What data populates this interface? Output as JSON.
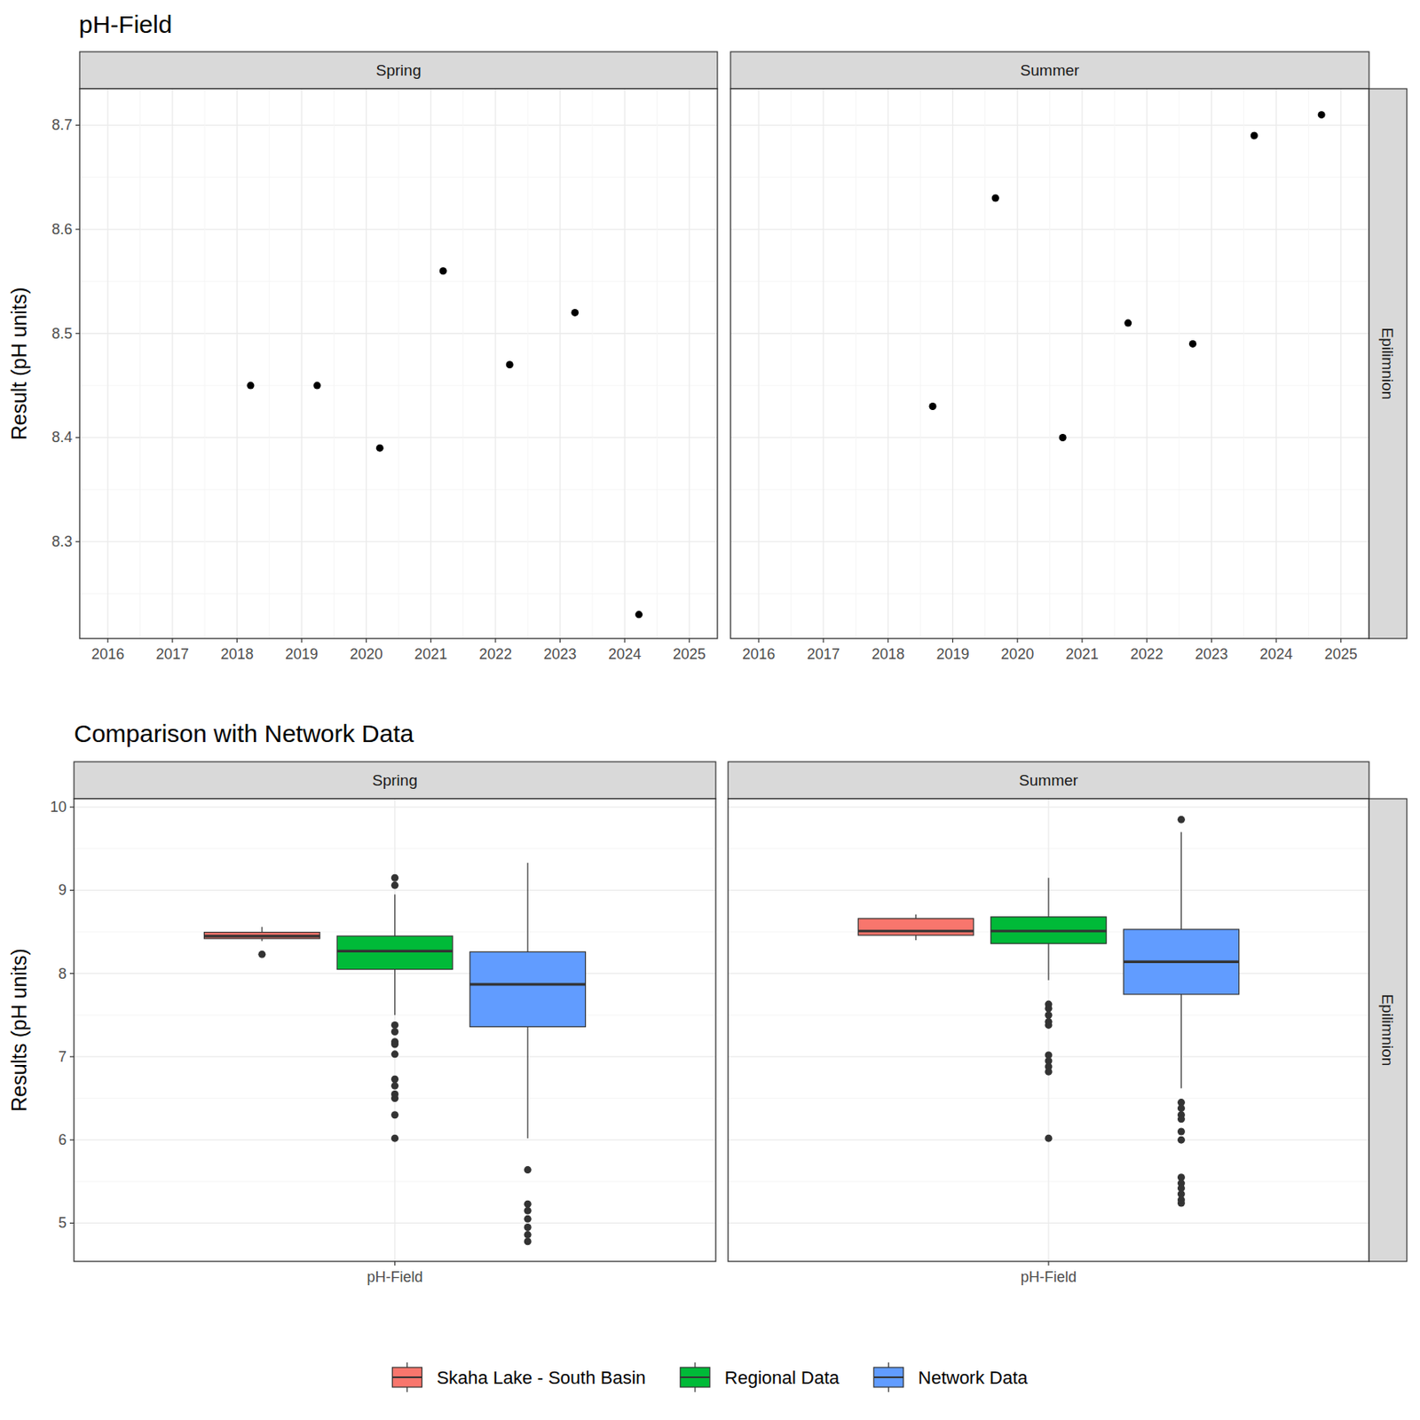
{
  "chart_data": [
    {
      "type": "scatter",
      "title": "pH-Field",
      "y_label": "Result (pH units)",
      "row_label": "Epilimnion",
      "panels": [
        "Spring",
        "Summer"
      ],
      "series": [
        {
          "x": [
            2018.21,
            2019.24,
            2020.21,
            2021.19,
            2022.22,
            2023.23,
            2024.22
          ],
          "values": [
            8.45,
            8.45,
            8.39,
            8.56,
            8.47,
            8.52,
            8.23
          ]
        },
        {
          "x": [
            2018.69,
            2019.66,
            2020.7,
            2021.71,
            2022.71,
            2023.66,
            2024.7
          ],
          "values": [
            8.43,
            8.63,
            8.4,
            8.51,
            8.49,
            8.69,
            8.71
          ]
        }
      ],
      "color": "#000000",
      "marker": "circle",
      "xlim": [
        2015.565,
        2025.435
      ],
      "xticks": [
        2016,
        2017,
        2018,
        2019,
        2020,
        2021,
        2022,
        2023,
        2024,
        2025
      ],
      "ylim": [
        8.207,
        8.735
      ],
      "yticks": [
        8.3,
        8.4,
        8.5,
        8.6,
        8.7
      ],
      "grid": true
    },
    {
      "type": "box",
      "title": "Comparison with Network Data",
      "y_label": "Results (pH units)",
      "row_label": "Epilimnion",
      "panels": [
        "Spring",
        "Summer"
      ],
      "categories": [
        "pH-Field"
      ],
      "series": [
        {
          "name": "Skaha Lake - South Basin",
          "color": "#F8766D",
          "boxes": [
            {
              "min": 8.39,
              "q1": 8.42,
              "median": 8.45,
              "q3": 8.495,
              "max": 8.56,
              "outliers": [
                8.23
              ]
            },
            {
              "min": 8.4,
              "q1": 8.46,
              "median": 8.51,
              "q3": 8.66,
              "max": 8.71,
              "outliers": []
            }
          ]
        },
        {
          "name": "Regional Data",
          "color": "#00BA38",
          "boxes": [
            {
              "min": 7.5,
              "q1": 8.05,
              "median": 8.27,
              "q3": 8.45,
              "max": 8.95,
              "outliers": [
                9.15,
                9.06,
                7.38,
                7.3,
                7.18,
                7.15,
                7.03,
                6.73,
                6.65,
                6.55,
                6.5,
                6.3,
                6.02
              ]
            },
            {
              "min": 7.92,
              "q1": 8.36,
              "median": 8.51,
              "q3": 8.68,
              "max": 9.15,
              "outliers": [
                7.63,
                7.58,
                7.5,
                7.42,
                7.38,
                7.02,
                6.95,
                6.88,
                6.82,
                6.02
              ]
            }
          ]
        },
        {
          "name": "Network Data",
          "color": "#619CFF",
          "boxes": [
            {
              "min": 6.02,
              "q1": 7.36,
              "median": 7.87,
              "q3": 8.26,
              "max": 9.33,
              "outliers": [
                5.64,
                5.23,
                5.15,
                5.05,
                4.95,
                4.86,
                4.78
              ]
            },
            {
              "min": 6.62,
              "q1": 7.75,
              "median": 8.14,
              "q3": 8.53,
              "max": 9.7,
              "outliers": [
                9.85,
                6.45,
                6.38,
                6.3,
                6.25,
                6.1,
                6.0,
                5.55,
                5.48,
                5.42,
                5.35,
                5.28,
                5.24
              ]
            }
          ]
        }
      ],
      "ylim": [
        4.54,
        10.1
      ],
      "yticks": [
        5,
        6,
        7,
        8,
        9,
        10
      ],
      "grid": true,
      "legend": "bottom"
    }
  ]
}
